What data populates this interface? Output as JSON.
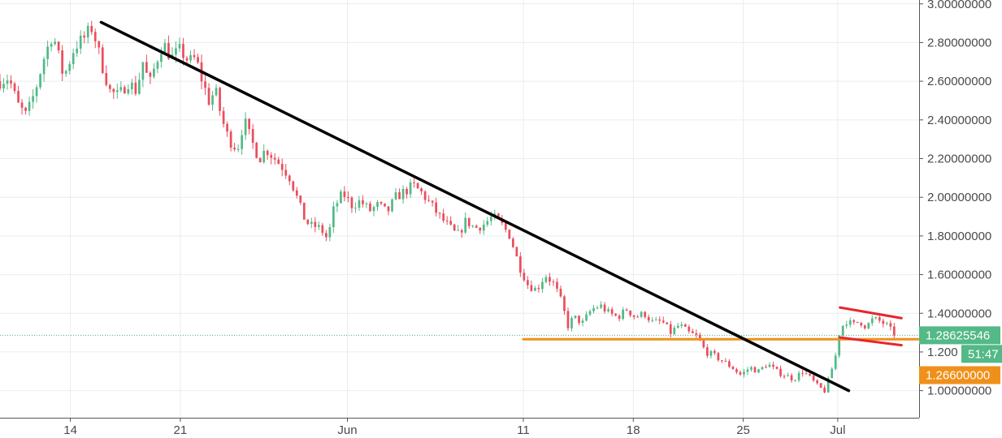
{
  "chart_data": {
    "type": "candlestick",
    "ylim": [
      0.86,
      3.02
    ],
    "y_ticks": [
      1.0,
      1.2,
      1.4,
      1.6,
      1.8,
      2.0,
      2.2,
      2.4,
      2.6,
      2.8,
      3.0
    ],
    "y_tick_labels": [
      "1.00000000",
      "1.200",
      "1.40000000",
      "1.60000000",
      "1.80000000",
      "2.00000000",
      "2.20000000",
      "2.40000000",
      "2.60000000",
      "2.80000000",
      "3.00000000"
    ],
    "x_range_days": [
      -3.2,
      38.6
    ],
    "x_ticks": [
      {
        "day": 0,
        "label": "14"
      },
      {
        "day": 5,
        "label": "21"
      },
      {
        "day": 12.6,
        "label": "Jun"
      },
      {
        "day": 20.6,
        "label": "11"
      },
      {
        "day": 25.6,
        "label": "18"
      },
      {
        "day": 30.6,
        "label": "25"
      },
      {
        "day": 34.9,
        "label": "Jul"
      }
    ],
    "price_path": [
      [
        -3.2,
        2.6
      ],
      [
        -2.8,
        2.62
      ],
      [
        -2.4,
        2.48
      ],
      [
        -2.0,
        2.42
      ],
      [
        -1.6,
        2.55
      ],
      [
        -1.2,
        2.72
      ],
      [
        -0.8,
        2.85
      ],
      [
        -0.3,
        2.62
      ],
      [
        0.2,
        2.78
      ],
      [
        0.6,
        2.82
      ],
      [
        1.0,
        2.88
      ],
      [
        1.4,
        2.7
      ],
      [
        1.8,
        2.55
      ],
      [
        2.2,
        2.52
      ],
      [
        2.6,
        2.6
      ],
      [
        3.0,
        2.55
      ],
      [
        3.3,
        2.7
      ],
      [
        3.6,
        2.58
      ],
      [
        3.9,
        2.7
      ],
      [
        4.2,
        2.8
      ],
      [
        4.6,
        2.72
      ],
      [
        5.0,
        2.76
      ],
      [
        5.4,
        2.7
      ],
      [
        5.7,
        2.72
      ],
      [
        6.0,
        2.6
      ],
      [
        6.3,
        2.5
      ],
      [
        6.6,
        2.55
      ],
      [
        6.9,
        2.4
      ],
      [
        7.2,
        2.3
      ],
      [
        7.6,
        2.25
      ],
      [
        7.9,
        2.4
      ],
      [
        8.2,
        2.3
      ],
      [
        8.6,
        2.2
      ],
      [
        8.9,
        2.25
      ],
      [
        9.3,
        2.2
      ],
      [
        9.7,
        2.15
      ],
      [
        10.0,
        2.1
      ],
      [
        10.3,
        2.0
      ],
      [
        10.6,
        1.9
      ],
      [
        10.9,
        1.85
      ],
      [
        11.2,
        1.85
      ],
      [
        11.5,
        1.82
      ],
      [
        11.7,
        1.78
      ],
      [
        12.0,
        1.95
      ],
      [
        12.4,
        2.02
      ],
      [
        12.8,
        1.96
      ],
      [
        13.2,
        1.98
      ],
      [
        13.6,
        1.93
      ],
      [
        14.0,
        1.96
      ],
      [
        14.4,
        1.92
      ],
      [
        14.8,
        2.0
      ],
      [
        15.2,
        2.03
      ],
      [
        15.6,
        2.06
      ],
      [
        16.0,
        2.02
      ],
      [
        16.4,
        1.96
      ],
      [
        16.8,
        1.9
      ],
      [
        17.2,
        1.85
      ],
      [
        17.6,
        1.8
      ],
      [
        18.0,
        1.88
      ],
      [
        18.4,
        1.84
      ],
      [
        18.8,
        1.86
      ],
      [
        19.2,
        1.9
      ],
      [
        19.6,
        1.86
      ],
      [
        20.0,
        1.8
      ],
      [
        20.4,
        1.65
      ],
      [
        20.8,
        1.55
      ],
      [
        21.2,
        1.52
      ],
      [
        21.6,
        1.6
      ],
      [
        22.0,
        1.55
      ],
      [
        22.4,
        1.44
      ],
      [
        22.6,
        1.33
      ],
      [
        22.9,
        1.38
      ],
      [
        23.3,
        1.35
      ],
      [
        23.7,
        1.42
      ],
      [
        24.1,
        1.44
      ],
      [
        24.5,
        1.4
      ],
      [
        24.9,
        1.38
      ],
      [
        25.3,
        1.42
      ],
      [
        25.7,
        1.38
      ],
      [
        26.1,
        1.4
      ],
      [
        26.5,
        1.35
      ],
      [
        26.9,
        1.36
      ],
      [
        27.3,
        1.3
      ],
      [
        27.7,
        1.34
      ],
      [
        28.1,
        1.3
      ],
      [
        28.5,
        1.28
      ],
      [
        28.9,
        1.2
      ],
      [
        29.3,
        1.18
      ],
      [
        29.7,
        1.15
      ],
      [
        30.1,
        1.12
      ],
      [
        30.5,
        1.08
      ],
      [
        30.9,
        1.12
      ],
      [
        31.3,
        1.1
      ],
      [
        31.7,
        1.14
      ],
      [
        32.1,
        1.1
      ],
      [
        32.5,
        1.08
      ],
      [
        32.9,
        1.06
      ],
      [
        33.3,
        1.1
      ],
      [
        33.7,
        1.06
      ],
      [
        34.0,
        1.02
      ],
      [
        34.3,
        1.0
      ],
      [
        34.5,
        1.06
      ],
      [
        34.8,
        1.18
      ],
      [
        35.0,
        1.32
      ],
      [
        35.3,
        1.36
      ],
      [
        35.6,
        1.34
      ],
      [
        35.9,
        1.36
      ],
      [
        36.2,
        1.33
      ],
      [
        36.5,
        1.37
      ],
      [
        36.8,
        1.36
      ],
      [
        37.1,
        1.34
      ],
      [
        37.4,
        1.3
      ],
      [
        37.6,
        1.286
      ]
    ],
    "lines": {
      "trendline": {
        "color": "#000000",
        "from": [
          1.4,
          2.905
        ],
        "to": [
          35.4,
          1.0
        ]
      },
      "support": {
        "color": "#f0901a",
        "from": [
          20.6,
          1.266
        ],
        "to": [
          39.3,
          1.266
        ]
      },
      "channel_top": {
        "color": "#e8252c",
        "from": [
          35.0,
          1.43
        ],
        "to": [
          37.8,
          1.375
        ]
      },
      "channel_bottom": {
        "color": "#e8252c",
        "from": [
          35.0,
          1.275
        ],
        "to": [
          37.8,
          1.235
        ]
      }
    },
    "current_price_line": {
      "value": 1.28625546,
      "color": "#4bab7c"
    },
    "price_badges": [
      {
        "label": "1.28625546",
        "value": 1.28625546,
        "color": "#53b987"
      },
      {
        "label": "51:47",
        "value": 1.19,
        "color": "#53b987"
      },
      {
        "label": "1.26600000",
        "value": 1.08,
        "color": "#f0901a"
      }
    ],
    "colors": {
      "up": "#53b987",
      "down": "#eb4d5c",
      "grid": "#e9eef2",
      "axis_text": "#4a4a4a"
    }
  }
}
